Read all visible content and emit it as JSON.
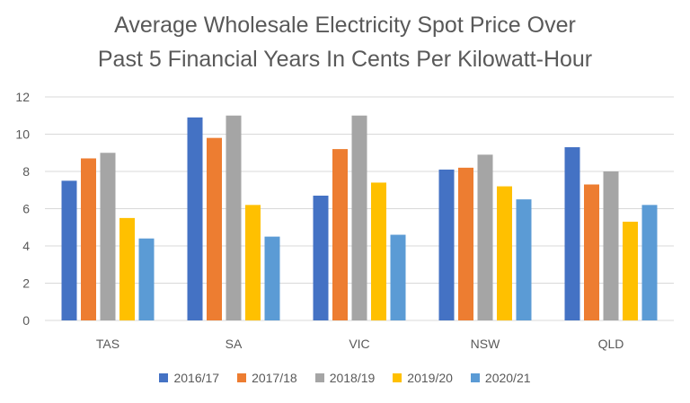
{
  "chart_data": {
    "type": "bar",
    "title": "Average Wholesale Electricity Spot Price Over Past 5 Financial Years In Cents Per Kilowatt-Hour",
    "title_lines": [
      "Average Wholesale Electricity Spot Price Over",
      "Past 5 Financial Years In Cents Per Kilowatt-Hour"
    ],
    "categories": [
      "TAS",
      "SA",
      "VIC",
      "NSW",
      "QLD"
    ],
    "series": [
      {
        "name": "2016/17",
        "color": "#4472C4",
        "values": [
          7.5,
          10.9,
          6.7,
          8.1,
          9.3
        ]
      },
      {
        "name": "2017/18",
        "color": "#ED7D31",
        "values": [
          8.7,
          9.8,
          9.2,
          8.2,
          7.3
        ]
      },
      {
        "name": "2018/19",
        "color": "#A5A5A5",
        "values": [
          9.0,
          11.0,
          11.0,
          8.9,
          8.0
        ]
      },
      {
        "name": "2019/20",
        "color": "#FFC000",
        "values": [
          5.5,
          6.2,
          7.4,
          7.2,
          5.3
        ]
      },
      {
        "name": "2020/21",
        "color": "#5B9BD5",
        "values": [
          4.4,
          4.5,
          4.6,
          6.5,
          6.2
        ]
      }
    ],
    "yticks": [
      "0",
      "2",
      "4",
      "6",
      "8",
      "10",
      "12"
    ],
    "ylim": [
      0,
      12
    ],
    "xlabel": "",
    "ylabel": "",
    "grid": true,
    "legend": "bottom"
  }
}
